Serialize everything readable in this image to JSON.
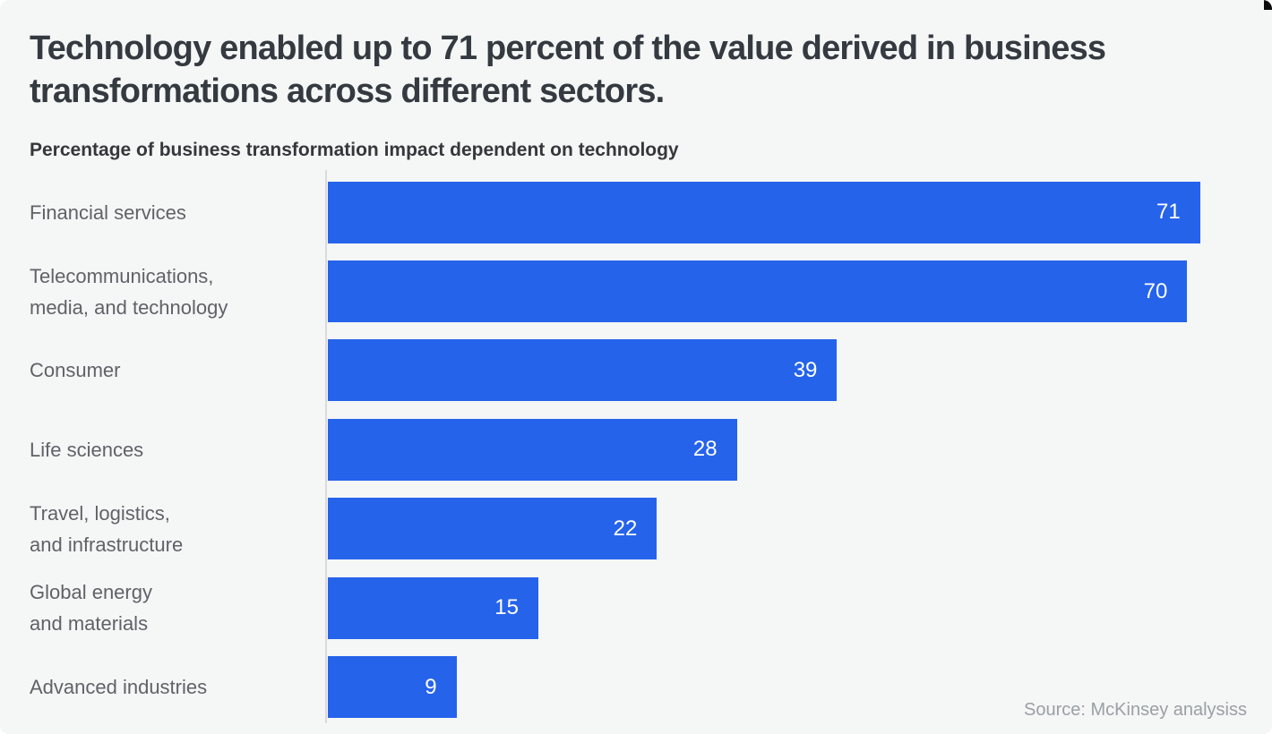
{
  "header": {
    "title": "Technology enabled up to 71 percent of the value derived in business\ntransformations across different sectors.",
    "subtitle": "Percentage of business transformation impact dependent on technology"
  },
  "chart_data": {
    "type": "bar",
    "orientation": "horizontal",
    "title": "Technology enabled up to 71 percent of the value derived in business transformations across different sectors.",
    "subtitle": "Percentage of business transformation impact dependent on technology",
    "categories": [
      "Financial services",
      "Telecommunications,\nmedia, and technology",
      "Consumer",
      "Life sciences",
      "Travel, logistics,\nand infrastructure",
      "Global energy\nand materials",
      "Advanced industries"
    ],
    "values": [
      71,
      70,
      39,
      28,
      22,
      15,
      9
    ],
    "bar_color": "#2563eb",
    "value_label_color": "#ffffff",
    "bar_width_pct": [
      94.9,
      93.5,
      55.4,
      44.5,
      35.8,
      22.9,
      14.0
    ],
    "axis_line_color": "#d8dadc",
    "gridlines": false,
    "legend": "none",
    "value_labels": "inside-right"
  },
  "footer": {
    "source": "Source: McKinsey analysiss"
  },
  "colors": {
    "background": "#f5f6f6",
    "title": "#343a40",
    "category_label": "#5f6368",
    "source_text": "#9aa0a6",
    "bar_blue": "#2563eb",
    "axis_line": "#d8dadc"
  }
}
